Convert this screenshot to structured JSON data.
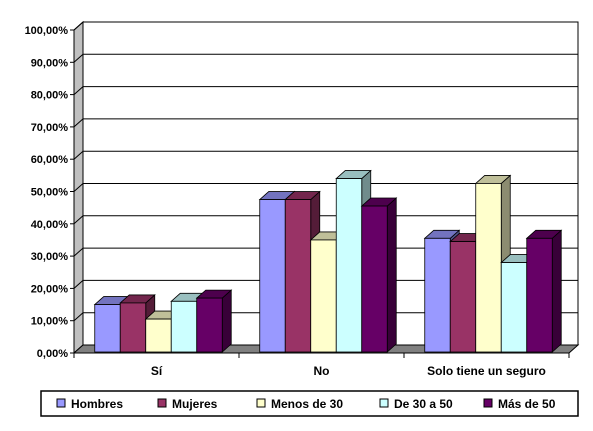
{
  "chart_data": {
    "type": "bar",
    "categories": [
      "Sí",
      "No",
      "Solo tiene un seguro"
    ],
    "series": [
      {
        "name": "Hombres",
        "values": [
          15.0,
          47.5,
          35.5
        ],
        "color": "#9999ff"
      },
      {
        "name": "Mujeres",
        "values": [
          15.5,
          47.5,
          34.5
        ],
        "color": "#993366"
      },
      {
        "name": "Menos de 30",
        "values": [
          10.5,
          35.0,
          52.5
        ],
        "color": "#ffffcc"
      },
      {
        "name": "De 30 a 50",
        "values": [
          16.0,
          54.0,
          28.0
        ],
        "color": "#ccffff"
      },
      {
        "name": "Más de 50",
        "values": [
          17.0,
          45.5,
          35.5
        ],
        "color": "#660066"
      }
    ],
    "y_ticks": [
      "0,00%",
      "10,00%",
      "20,00%",
      "30,00%",
      "40,00%",
      "50,00%",
      "60,00%",
      "70,00%",
      "80,00%",
      "90,00%",
      "100,00%"
    ],
    "ylim": [
      0,
      100
    ],
    "grid": true,
    "legend_position": "bottom",
    "style": "3d-clustered-column"
  }
}
